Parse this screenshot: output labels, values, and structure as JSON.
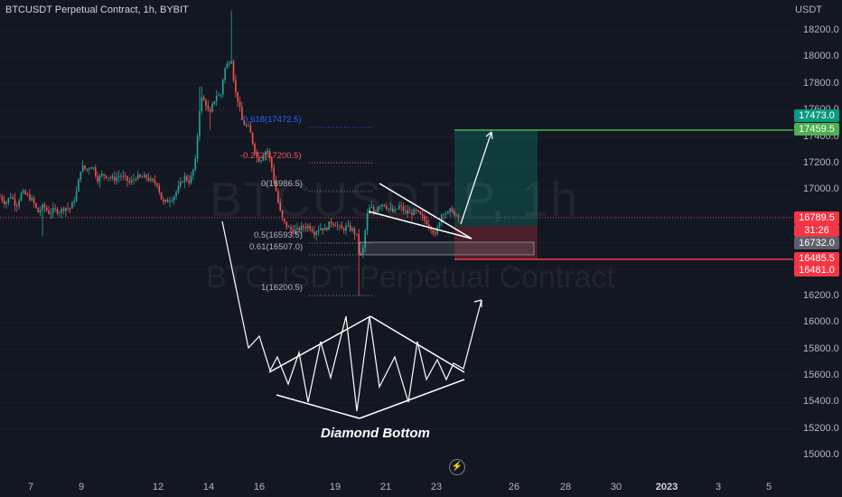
{
  "header": {
    "title": "BTCUSDT Perpetual Contract, 1h, BYBIT",
    "currency": "USDT"
  },
  "watermark": {
    "line1": "BTCUSDT.P, 1h",
    "line2": "BTCUSDT Perpetual Contract"
  },
  "price_axis": [
    "18200.0",
    "18000.0",
    "17800.0",
    "17600.0",
    "17400.0",
    "17200.0",
    "17000.0",
    "16800.0",
    "16600.0",
    "16400.0",
    "16200.0",
    "16000.0",
    "15800.0",
    "15600.0",
    "15400.0",
    "15200.0",
    "15000.0"
  ],
  "time_axis": [
    {
      "label": "7",
      "bold": false
    },
    {
      "label": "9",
      "bold": false
    },
    {
      "label": "12",
      "bold": false
    },
    {
      "label": "14",
      "bold": false
    },
    {
      "label": "16",
      "bold": false
    },
    {
      "label": "19",
      "bold": false
    },
    {
      "label": "21",
      "bold": false
    },
    {
      "label": "23",
      "bold": false
    },
    {
      "label": "26",
      "bold": false
    },
    {
      "label": "28",
      "bold": false
    },
    {
      "label": "30",
      "bold": false
    },
    {
      "label": "2023",
      "bold": true
    },
    {
      "label": "3",
      "bold": false
    },
    {
      "label": "5",
      "bold": false
    }
  ],
  "price_tags": [
    {
      "label": "17473.0",
      "color": "#089981"
    },
    {
      "label": "17459.5",
      "color": "#4caf50"
    },
    {
      "label": "16789.5",
      "color": "#f23645"
    },
    {
      "label": "31:26",
      "color": "#f23645"
    },
    {
      "label": "16732.0",
      "color": "#5d606b"
    },
    {
      "label": "16485.5",
      "color": "#f23645"
    },
    {
      "label": "16481.0",
      "color": "#f23645"
    }
  ],
  "fib_levels": [
    {
      "label": "-0.618(17472.5)",
      "color": "#2962ff"
    },
    {
      "label": "-0.272(17200.5)",
      "color": "#f7525f"
    },
    {
      "label": "0(16986.5)",
      "color": "#b2b5be"
    },
    {
      "label": "0.5(16593.5)",
      "color": "#b2b5be"
    },
    {
      "label": "0.61(16507.0)",
      "color": "#b2b5be"
    },
    {
      "label": "1(16200.5)",
      "color": "#b2b5be"
    }
  ],
  "annotation": "Diamond Bottom",
  "colors": {
    "background": "#131722",
    "bull": "#26a69a",
    "bear": "#ef5350",
    "target_line": "#4caf50",
    "stop_line": "#f23645",
    "current_price_line": "#f23645"
  },
  "icons": {
    "replay": "lightning-icon"
  },
  "chart_data": {
    "type": "candlestick",
    "symbol": "BTCUSDT Perpetual Contract",
    "interval": "1h",
    "exchange": "BYBIT",
    "ylim": [
      15000,
      18300
    ],
    "close_path": [
      [
        0,
        16950
      ],
      [
        6,
        16900
      ],
      [
        12,
        16960
      ],
      [
        18,
        16880
      ],
      [
        24,
        16980
      ],
      [
        30,
        16960
      ],
      [
        36,
        16920
      ],
      [
        42,
        16830
      ],
      [
        48,
        16880
      ],
      [
        54,
        16830
      ],
      [
        60,
        16850
      ],
      [
        66,
        16840
      ],
      [
        72,
        16870
      ],
      [
        78,
        16860
      ],
      [
        84,
        16960
      ],
      [
        90,
        17180
      ],
      [
        96,
        17150
      ],
      [
        102,
        17190
      ],
      [
        108,
        17080
      ],
      [
        114,
        17120
      ],
      [
        120,
        17100
      ],
      [
        126,
        17080
      ],
      [
        132,
        17110
      ],
      [
        138,
        17090
      ],
      [
        144,
        17050
      ],
      [
        150,
        17100
      ],
      [
        156,
        17090
      ],
      [
        162,
        17100
      ],
      [
        168,
        17060
      ],
      [
        174,
        17050
      ],
      [
        180,
        16900
      ],
      [
        186,
        16920
      ],
      [
        192,
        16950
      ],
      [
        198,
        17020
      ],
      [
        204,
        17100
      ],
      [
        210,
        17060
      ],
      [
        216,
        17200
      ],
      [
        222,
        17700
      ],
      [
        228,
        17650
      ],
      [
        232,
        17560
      ],
      [
        236,
        17660
      ],
      [
        240,
        17720
      ],
      [
        244,
        17700
      ],
      [
        248,
        17900
      ],
      [
        252,
        17950
      ],
      [
        256,
        18000
      ],
      [
        260,
        17750
      ],
      [
        264,
        17660
      ],
      [
        268,
        17520
      ],
      [
        272,
        17480
      ],
      [
        276,
        17460
      ],
      [
        280,
        17350
      ],
      [
        284,
        17250
      ],
      [
        288,
        17220
      ],
      [
        292,
        17280
      ],
      [
        296,
        17300
      ],
      [
        300,
        17200
      ],
      [
        304,
        17050
      ],
      [
        308,
        16900
      ],
      [
        312,
        16780
      ],
      [
        318,
        16720
      ],
      [
        324,
        16690
      ],
      [
        330,
        16700
      ],
      [
        336,
        16720
      ],
      [
        342,
        16730
      ],
      [
        348,
        16680
      ],
      [
        354,
        16720
      ],
      [
        360,
        16700
      ],
      [
        366,
        16760
      ],
      [
        372,
        16740
      ],
      [
        378,
        16700
      ],
      [
        384,
        16720
      ],
      [
        390,
        16700
      ],
      [
        395,
        16650
      ],
      [
        398,
        16480
      ],
      [
        402,
        16560
      ],
      [
        406,
        16800
      ],
      [
        410,
        16880
      ],
      [
        414,
        16820
      ],
      [
        418,
        16880
      ],
      [
        424,
        16900
      ],
      [
        430,
        16860
      ],
      [
        436,
        16830
      ],
      [
        442,
        16880
      ],
      [
        448,
        16840
      ],
      [
        454,
        16820
      ],
      [
        460,
        16840
      ],
      [
        466,
        16800
      ],
      [
        472,
        16760
      ],
      [
        478,
        16710
      ],
      [
        482,
        16650
      ],
      [
        486,
        16760
      ],
      [
        490,
        16840
      ],
      [
        496,
        16820
      ],
      [
        500,
        16860
      ],
      [
        504,
        16790
      ],
      [
        508,
        16789
      ]
    ],
    "drawings": {
      "long_position": {
        "entry": 16732,
        "target": 17459.5,
        "stop": 16485.5
      },
      "pattern": "Diamond Bottom",
      "fibonacci": [
        -0.618,
        -0.272,
        0,
        0.5,
        0.61,
        1
      ]
    }
  }
}
